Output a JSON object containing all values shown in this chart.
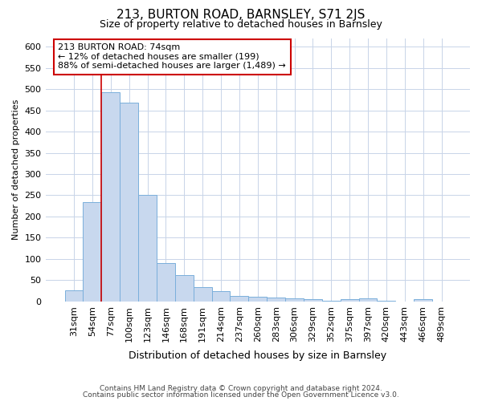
{
  "title": "213, BURTON ROAD, BARNSLEY, S71 2JS",
  "subtitle": "Size of property relative to detached houses in Barnsley",
  "xlabel": "Distribution of detached houses by size in Barnsley",
  "ylabel": "Number of detached properties",
  "footer_line1": "Contains HM Land Registry data © Crown copyright and database right 2024.",
  "footer_line2": "Contains public sector information licensed under the Open Government Licence v3.0.",
  "bar_color": "#c8d8ee",
  "bar_edge_color": "#7aafdb",
  "subject_line_color": "#cc0000",
  "annotation_box_color": "#cc0000",
  "grid_color": "#c8d4e8",
  "categories": [
    "31sqm",
    "54sqm",
    "77sqm",
    "100sqm",
    "123sqm",
    "146sqm",
    "168sqm",
    "191sqm",
    "214sqm",
    "237sqm",
    "260sqm",
    "283sqm",
    "306sqm",
    "329sqm",
    "352sqm",
    "375sqm",
    "397sqm",
    "420sqm",
    "443sqm",
    "466sqm",
    "489sqm"
  ],
  "values": [
    27,
    233,
    492,
    468,
    250,
    90,
    63,
    33,
    24,
    13,
    12,
    10,
    8,
    5,
    2,
    5,
    7,
    2,
    0,
    5,
    0
  ],
  "annotation_line1": "213 BURTON ROAD: 74sqm",
  "annotation_line2": "← 12% of detached houses are smaller (199)",
  "annotation_line3": "88% of semi-detached houses are larger (1,489) →",
  "subject_bar_index": 2,
  "ylim": [
    0,
    620
  ],
  "yticks": [
    0,
    50,
    100,
    150,
    200,
    250,
    300,
    350,
    400,
    450,
    500,
    550,
    600
  ],
  "background_color": "#ffffff",
  "plot_bg_color": "#ffffff",
  "title_fontsize": 11,
  "subtitle_fontsize": 9,
  "ylabel_fontsize": 8,
  "xlabel_fontsize": 9,
  "tick_fontsize": 8,
  "annotation_fontsize": 8
}
